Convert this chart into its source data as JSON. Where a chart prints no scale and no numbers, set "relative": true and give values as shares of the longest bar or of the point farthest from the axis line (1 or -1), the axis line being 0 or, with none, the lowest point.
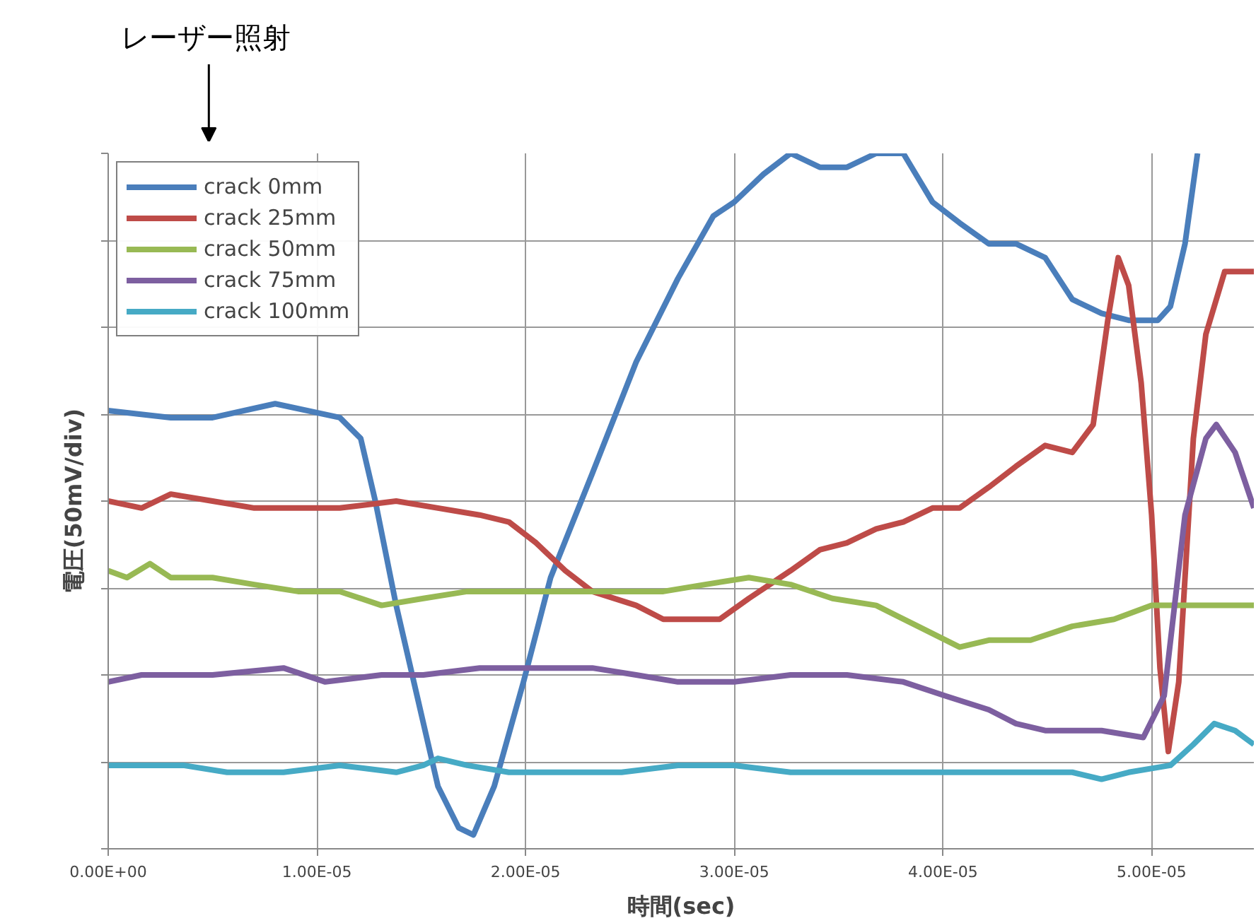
{
  "chart_data": {
    "type": "line",
    "xlabel": "時間(sec)",
    "ylabel": "電圧(50mV/div)",
    "relative": true,
    "xlim": [
      0,
      5.49e-05
    ],
    "xticks": [
      {
        "value": 0,
        "label": "0.00E+00"
      },
      {
        "value": 1e-05,
        "label": "1.00E-05"
      },
      {
        "value": 2e-05,
        "label": "2.00E-05"
      },
      {
        "value": 3e-05,
        "label": "3.00E-05"
      },
      {
        "value": 4e-05,
        "label": "4.00E-05"
      },
      {
        "value": 5e-05,
        "label": "5.00E-05"
      }
    ],
    "grid": true,
    "legend": "top left",
    "marker": "none",
    "line_style": "solid",
    "annotations": [
      "レーザー照射"
    ],
    "series": [
      {
        "name": "crack 0mm",
        "color": "#4a7ebb",
        "x": [
          0,
          3e-06,
          5e-06,
          8e-06,
          1.11e-05,
          1.21e-05,
          1.28e-05,
          1.38e-05,
          1.48e-05,
          1.58e-05,
          1.68e-05,
          1.75e-05,
          1.85e-05,
          1.99e-05,
          2.12e-05,
          2.32e-05,
          2.53e-05,
          2.73e-05,
          2.9e-05,
          3e-05,
          3.14e-05,
          3.27e-05,
          3.41e-05,
          3.54e-05,
          3.68e-05,
          3.81e-05,
          3.95e-05,
          4.08e-05,
          4.22e-05,
          4.35e-05,
          4.49e-05,
          4.62e-05,
          4.76e-05,
          4.89e-05,
          5.03e-05,
          5.09e-05,
          5.16e-05,
          5.22e-05
        ],
        "values": [
          0.63,
          0.62,
          0.62,
          0.64,
          0.62,
          0.59,
          0.5,
          0.35,
          0.22,
          0.09,
          0.03,
          0.02,
          0.09,
          0.24,
          0.39,
          0.54,
          0.7,
          0.82,
          0.91,
          0.93,
          0.97,
          1.0,
          0.98,
          0.98,
          1.0,
          1.0,
          0.93,
          0.9,
          0.87,
          0.87,
          0.85,
          0.79,
          0.77,
          0.76,
          0.76,
          0.78,
          0.87,
          1.0
        ]
      },
      {
        "name": "crack 25mm",
        "color": "#be4b48",
        "x": [
          0,
          1.6e-06,
          3e-06,
          5e-06,
          7e-06,
          9.1e-06,
          1.11e-05,
          1.38e-05,
          1.58e-05,
          1.78e-05,
          1.92e-05,
          2.05e-05,
          2.19e-05,
          2.32e-05,
          2.53e-05,
          2.66e-05,
          2.8e-05,
          2.93e-05,
          3.07e-05,
          3.27e-05,
          3.41e-05,
          3.54e-05,
          3.68e-05,
          3.81e-05,
          3.95e-05,
          4.08e-05,
          4.22e-05,
          4.35e-05,
          4.49e-05,
          4.62e-05,
          4.72e-05,
          4.79e-05,
          4.84e-05,
          4.89e-05,
          4.95e-05,
          5e-05,
          5.04e-05,
          5.08e-05,
          5.13e-05,
          5.2e-05,
          5.26e-05,
          5.35e-05,
          5.49e-05
        ],
        "values": [
          0.5,
          0.49,
          0.51,
          0.5,
          0.49,
          0.49,
          0.49,
          0.5,
          0.49,
          0.48,
          0.47,
          0.44,
          0.4,
          0.37,
          0.35,
          0.33,
          0.33,
          0.33,
          0.36,
          0.4,
          0.43,
          0.44,
          0.46,
          0.47,
          0.49,
          0.49,
          0.52,
          0.55,
          0.58,
          0.57,
          0.61,
          0.76,
          0.85,
          0.81,
          0.67,
          0.48,
          0.26,
          0.14,
          0.24,
          0.59,
          0.74,
          0.83,
          0.83
        ]
      },
      {
        "name": "crack 50mm",
        "color": "#98b954",
        "x": [
          0,
          9e-07,
          2e-06,
          3e-06,
          5e-06,
          7e-06,
          9.1e-06,
          1.11e-05,
          1.31e-05,
          1.51e-05,
          1.72e-05,
          1.92e-05,
          2.19e-05,
          2.46e-05,
          2.66e-05,
          2.86e-05,
          3.07e-05,
          3.27e-05,
          3.47e-05,
          3.68e-05,
          3.88e-05,
          4.08e-05,
          4.22e-05,
          4.42e-05,
          4.62e-05,
          4.82e-05,
          5e-05,
          5.16e-05,
          5.36e-05,
          5.49e-05
        ],
        "values": [
          0.4,
          0.39,
          0.41,
          0.39,
          0.39,
          0.38,
          0.37,
          0.37,
          0.35,
          0.36,
          0.37,
          0.37,
          0.37,
          0.37,
          0.37,
          0.38,
          0.39,
          0.38,
          0.36,
          0.35,
          0.32,
          0.29,
          0.3,
          0.3,
          0.32,
          0.33,
          0.35,
          0.35,
          0.35,
          0.35
        ]
      },
      {
        "name": "crack 75mm",
        "color": "#7d5fa0",
        "x": [
          0,
          1.6e-06,
          5e-06,
          8.4e-06,
          1.04e-05,
          1.31e-05,
          1.51e-05,
          1.78e-05,
          2.05e-05,
          2.32e-05,
          2.53e-05,
          2.73e-05,
          3e-05,
          3.27e-05,
          3.54e-05,
          3.81e-05,
          4.01e-05,
          4.22e-05,
          4.35e-05,
          4.49e-05,
          4.76e-05,
          4.96e-05,
          5.06e-05,
          5.16e-05,
          5.26e-05,
          5.31e-05,
          5.4e-05,
          5.49e-05
        ],
        "values": [
          0.24,
          0.25,
          0.25,
          0.26,
          0.24,
          0.25,
          0.25,
          0.26,
          0.26,
          0.26,
          0.25,
          0.24,
          0.24,
          0.25,
          0.25,
          0.24,
          0.22,
          0.2,
          0.18,
          0.17,
          0.17,
          0.16,
          0.22,
          0.48,
          0.59,
          0.61,
          0.57,
          0.49
        ]
      },
      {
        "name": "crack 100mm",
        "color": "#46aac5",
        "x": [
          0,
          1.6e-06,
          3.6e-06,
          5.7e-06,
          8.4e-06,
          1.11e-05,
          1.38e-05,
          1.51e-05,
          1.58e-05,
          1.72e-05,
          1.92e-05,
          2.19e-05,
          2.46e-05,
          2.73e-05,
          3e-05,
          3.27e-05,
          3.54e-05,
          3.81e-05,
          4.08e-05,
          4.35e-05,
          4.62e-05,
          4.76e-05,
          4.89e-05,
          5.09e-05,
          5.2e-05,
          5.3e-05,
          5.4e-05,
          5.49e-05
        ],
        "values": [
          0.12,
          0.12,
          0.12,
          0.11,
          0.11,
          0.12,
          0.11,
          0.12,
          0.13,
          0.12,
          0.11,
          0.11,
          0.11,
          0.12,
          0.12,
          0.11,
          0.11,
          0.11,
          0.11,
          0.11,
          0.11,
          0.1,
          0.11,
          0.12,
          0.15,
          0.18,
          0.17,
          0.15
        ]
      }
    ]
  }
}
